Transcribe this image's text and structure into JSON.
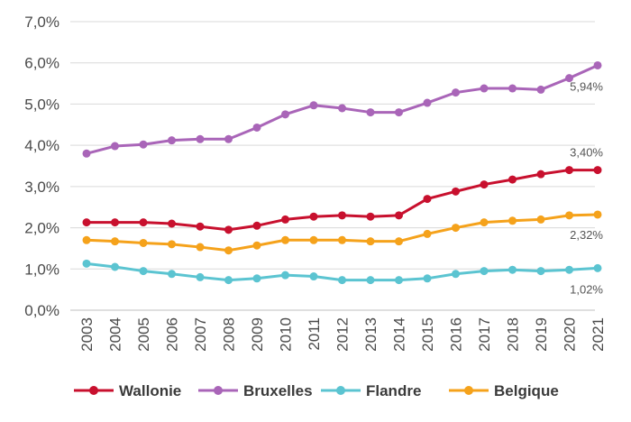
{
  "chart_data": {
    "type": "line",
    "title": "",
    "xlabel": "",
    "ylabel": "",
    "ylim": [
      0,
      7
    ],
    "grid": true,
    "legend_placement": "bottom",
    "y_ticks": [
      "0,0%",
      "1,0%",
      "2,0%",
      "3,0%",
      "4,0%",
      "5,0%",
      "6,0%",
      "7,0%"
    ],
    "categories": [
      "2003",
      "2004",
      "2005",
      "2006",
      "2007",
      "2008",
      "2009",
      "2010",
      "2011",
      "2012",
      "2013",
      "2014",
      "2015",
      "2016",
      "2017",
      "2018",
      "2019",
      "2020",
      "2021"
    ],
    "series": [
      {
        "name": "Wallonie",
        "color": "#c8102e",
        "values": [
          2.13,
          2.13,
          2.13,
          2.1,
          2.03,
          1.95,
          2.05,
          2.2,
          2.27,
          2.3,
          2.27,
          2.3,
          2.7,
          2.88,
          3.05,
          3.17,
          3.3,
          3.4,
          3.4
        ],
        "end_label": "3,40%"
      },
      {
        "name": "Bruxelles",
        "color": "#a965b8",
        "values": [
          3.8,
          3.98,
          4.02,
          4.12,
          4.15,
          4.15,
          4.43,
          4.75,
          4.97,
          4.9,
          4.8,
          4.8,
          5.03,
          5.28,
          5.38,
          5.38,
          5.35,
          5.63,
          5.94
        ],
        "end_label": "5,94%"
      },
      {
        "name": "Flandre",
        "color": "#5bc4d1",
        "values": [
          1.13,
          1.05,
          0.95,
          0.88,
          0.8,
          0.73,
          0.77,
          0.85,
          0.82,
          0.73,
          0.73,
          0.73,
          0.77,
          0.88,
          0.95,
          0.98,
          0.95,
          0.98,
          1.02
        ],
        "end_label": "1,02%"
      },
      {
        "name": "Belgique",
        "color": "#f5a21b",
        "values": [
          1.7,
          1.67,
          1.63,
          1.6,
          1.53,
          1.45,
          1.57,
          1.7,
          1.7,
          1.7,
          1.67,
          1.67,
          1.85,
          2.0,
          2.13,
          2.17,
          2.2,
          2.3,
          2.32
        ],
        "end_label": "2,32%"
      }
    ]
  }
}
